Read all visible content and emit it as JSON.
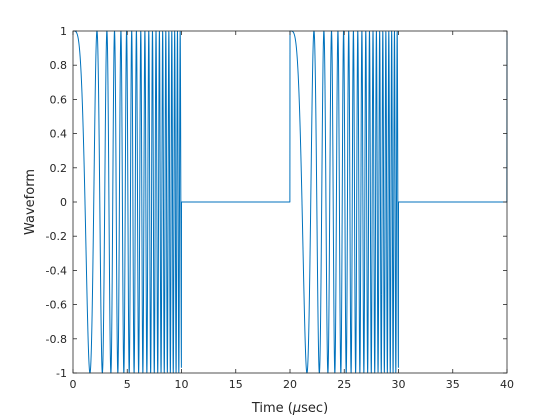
{
  "chart_data": {
    "type": "line",
    "title": "",
    "xlabel_main": "Time (",
    "xlabel_mu": "μ",
    "xlabel_rest": "sec)",
    "ylabel": "Waveform",
    "xlim": [
      0,
      40
    ],
    "ylim": [
      -1,
      1
    ],
    "grid": false,
    "line_color": "#0072BD",
    "x_ticks": [
      0,
      5,
      10,
      15,
      20,
      25,
      30,
      35,
      40
    ],
    "x_tick_labels": [
      "0",
      "5",
      "10",
      "15",
      "20",
      "25",
      "30",
      "35",
      "40"
    ],
    "y_ticks": [
      -1,
      -0.8,
      -0.6,
      -0.4,
      -0.2,
      0,
      0.2,
      0.4,
      0.6,
      0.8,
      1
    ],
    "y_tick_labels": [
      "-1",
      "-0.8",
      "-0.6",
      "-0.4",
      "-0.2",
      "0",
      "0.2",
      "0.4",
      "0.6",
      "0.8",
      "1"
    ],
    "series": [
      {
        "function": "cos(pi * k * t^2) for 0 <= (t mod 20) < 10, else 0",
        "chirp_rate_per_us2": 0.41,
        "pulse_width_us": 10,
        "period_us": 20,
        "t_start_us": 0,
        "t_end_us": 40
      }
    ]
  }
}
